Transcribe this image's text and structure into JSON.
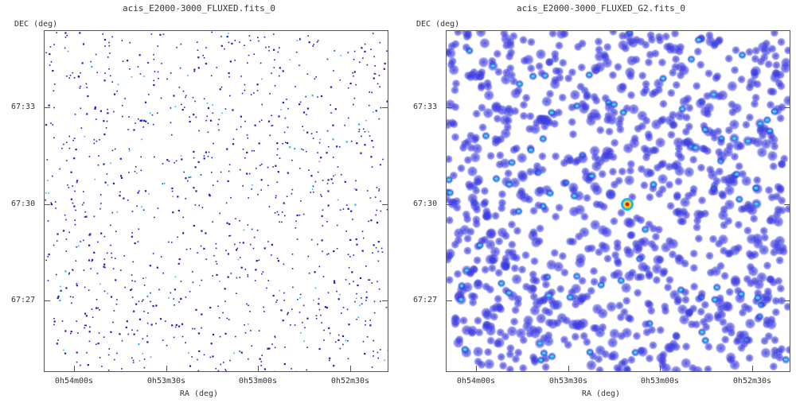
{
  "panels": [
    {
      "title": "acis_E2000-3000_FLUXED.fits_0",
      "ylabel": "DEC (deg)",
      "xlabel": "RA (deg)",
      "yticks": [
        "67:33",
        "67:30",
        "67:27"
      ],
      "xticks": [
        "0h54m00s",
        "0h53m30s",
        "0h53m00s",
        "0h52m30s"
      ],
      "style": "sparse-points"
    },
    {
      "title": "acis_E2000-3000_FLUXED_G2.fits_0",
      "ylabel": "DEC (deg)",
      "xlabel": "RA (deg)",
      "yticks": [
        "67:33",
        "67:30",
        "67:27"
      ],
      "xticks": [
        "0h54m00s",
        "0h53m30s",
        "0h53m00s",
        "0h52m30s"
      ],
      "style": "smoothed-blobs"
    }
  ],
  "colors": {
    "point": "#1a1ad0",
    "point_alt": "#27b6f0",
    "blob": "#3a3ae0",
    "blob_bright": "#27b6f0",
    "peak_core": "#e81a1a",
    "peak_ring": "#f2d21b"
  }
}
